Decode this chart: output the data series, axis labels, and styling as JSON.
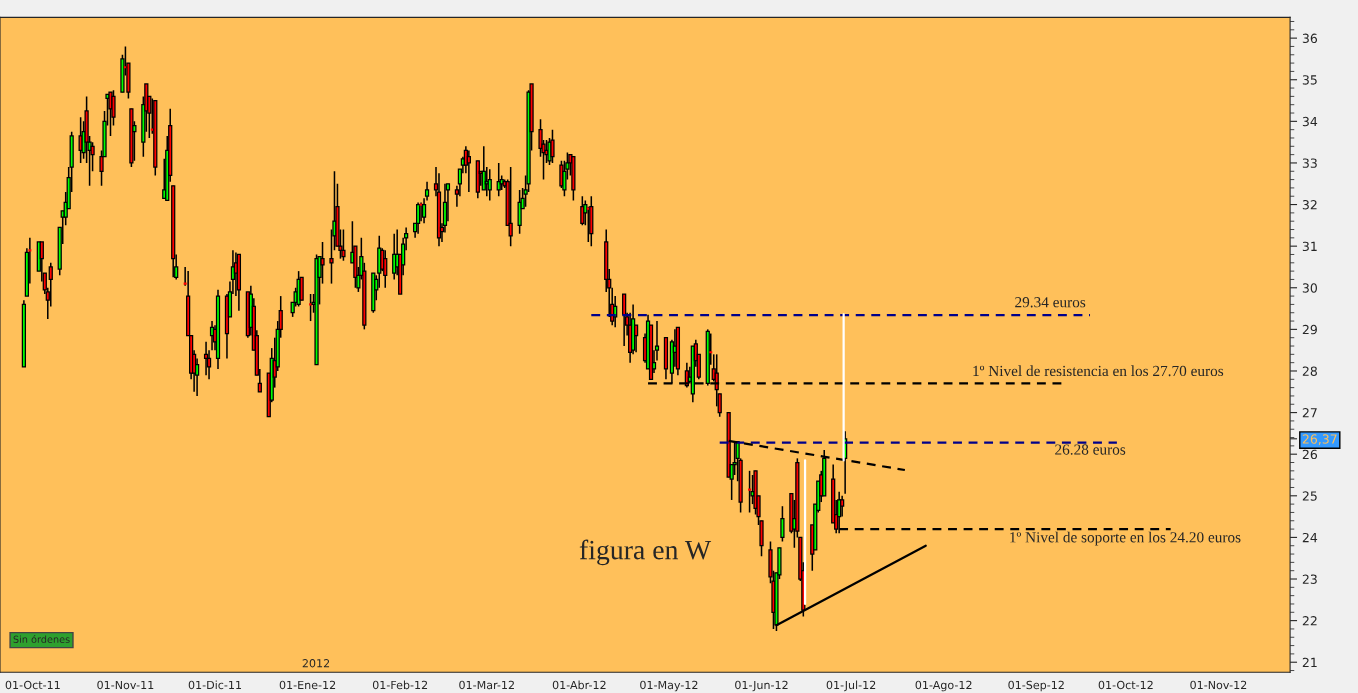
{
  "chart_data": {
    "type": "candlestick",
    "xlim": [
      "2011-09-20",
      "2012-11-25"
    ],
    "ylim": [
      20.76,
      36.5
    ],
    "xticks": [
      {
        "value": "2011-10-01",
        "label": "01-Oct-11"
      },
      {
        "value": "2011-11-01",
        "label": "01-Nov-11"
      },
      {
        "value": "2011-12-01",
        "label": "01-Dic-11"
      },
      {
        "value": "2012-01-01",
        "label": "01-Ene-12"
      },
      {
        "value": "2012-02-01",
        "label": "01-Feb-12"
      },
      {
        "value": "2012-03-01",
        "label": "01-Mar-12"
      },
      {
        "value": "2012-04-01",
        "label": "01-Abr-12"
      },
      {
        "value": "2012-05-01",
        "label": "01-May-12"
      },
      {
        "value": "2012-06-01",
        "label": "01-Jun-12"
      },
      {
        "value": "2012-07-01",
        "label": "01-Jul-12"
      },
      {
        "value": "2012-08-01",
        "label": "01-Ago-12"
      },
      {
        "value": "2012-09-01",
        "label": "01-Sep-12"
      },
      {
        "value": "2012-10-01",
        "label": "01-Oct-12"
      },
      {
        "value": "2012-11-01",
        "label": "01-Nov-12"
      }
    ],
    "yticks": [
      21,
      22,
      23,
      24,
      25,
      26,
      27,
      28,
      29,
      30,
      31,
      32,
      33,
      34,
      35,
      36,
      {
        "value": 26.37,
        "label": "26,37"
      }
    ],
    "series": [
      {
        "x": [
          "2011-09-28",
          "2011-09-29",
          "2011-09-30",
          "2011-10-03",
          "2011-10-04",
          "2011-10-05",
          "2011-10-06",
          "2011-10-07",
          "2011-10-10",
          "2011-10-11",
          "2011-10-12",
          "2011-10-13",
          "2011-10-14",
          "2011-10-17",
          "2011-10-18",
          "2011-10-19",
          "2011-10-20",
          "2011-10-21",
          "2011-10-24",
          "2011-10-25",
          "2011-10-26",
          "2011-10-27",
          "2011-10-28",
          "2011-10-31",
          "2011-11-01",
          "2011-11-02",
          "2011-11-03",
          "2011-11-04",
          "2011-11-07",
          "2011-11-08",
          "2011-11-09",
          "2011-11-10",
          "2011-11-11",
          "2011-11-14",
          "2011-11-15",
          "2011-11-16",
          "2011-11-17",
          "2011-11-18",
          "2011-11-21",
          "2011-11-22",
          "2011-11-23",
          "2011-11-24",
          "2011-11-25",
          "2011-11-28",
          "2011-11-29",
          "2011-11-30",
          "2011-12-01",
          "2011-12-02",
          "2011-12-05",
          "2011-12-06",
          "2011-12-07",
          "2011-12-08",
          "2011-12-09",
          "2011-12-12",
          "2011-12-13",
          "2011-12-14",
          "2011-12-15",
          "2011-12-16",
          "2011-12-19",
          "2011-12-20",
          "2011-12-21",
          "2011-12-22",
          "2011-12-23",
          "2011-12-27",
          "2011-12-28",
          "2011-12-29",
          "2011-12-30",
          "2012-01-02",
          "2012-01-03",
          "2012-01-04",
          "2012-01-05",
          "2012-01-06",
          "2012-01-09",
          "2012-01-10",
          "2012-01-11",
          "2012-01-12",
          "2012-01-13",
          "2012-01-16",
          "2012-01-17",
          "2012-01-18",
          "2012-01-19",
          "2012-01-20",
          "2012-01-23",
          "2012-01-24",
          "2012-01-25",
          "2012-01-26",
          "2012-01-27",
          "2012-01-30",
          "2012-01-31",
          "2012-02-01",
          "2012-02-02",
          "2012-02-03",
          "2012-02-06",
          "2012-02-07",
          "2012-02-08",
          "2012-02-09",
          "2012-02-10",
          "2012-02-13",
          "2012-02-14",
          "2012-02-15",
          "2012-02-16",
          "2012-02-17",
          "2012-02-20",
          "2012-02-21",
          "2012-02-22",
          "2012-02-23",
          "2012-02-24",
          "2012-02-27",
          "2012-02-28",
          "2012-02-29",
          "2012-03-01",
          "2012-03-02",
          "2012-03-05",
          "2012-03-06",
          "2012-03-07",
          "2012-03-08",
          "2012-03-09",
          "2012-03-12",
          "2012-03-13",
          "2012-03-14",
          "2012-03-15",
          "2012-03-16",
          "2012-03-19",
          "2012-03-20",
          "2012-03-21",
          "2012-03-22",
          "2012-03-23",
          "2012-03-26",
          "2012-03-27",
          "2012-03-28",
          "2012-03-29",
          "2012-03-30",
          "2012-04-02",
          "2012-04-03",
          "2012-04-04",
          "2012-04-05",
          "2012-04-10",
          "2012-04-11",
          "2012-04-12",
          "2012-04-13",
          "2012-04-16",
          "2012-04-17",
          "2012-04-18",
          "2012-04-19",
          "2012-04-20",
          "2012-04-23",
          "2012-04-24",
          "2012-04-25",
          "2012-04-26",
          "2012-04-27",
          "2012-04-30",
          "2012-05-02",
          "2012-05-03",
          "2012-05-04",
          "2012-05-07",
          "2012-05-08",
          "2012-05-09",
          "2012-05-10",
          "2012-05-11",
          "2012-05-14",
          "2012-05-15",
          "2012-05-16",
          "2012-05-17",
          "2012-05-18",
          "2012-05-21",
          "2012-05-22",
          "2012-05-23",
          "2012-05-24",
          "2012-05-25",
          "2012-05-28",
          "2012-05-29",
          "2012-05-30",
          "2012-05-31",
          "2012-06-01",
          "2012-06-04",
          "2012-06-05",
          "2012-06-06",
          "2012-06-07",
          "2012-06-08",
          "2012-06-11",
          "2012-06-12",
          "2012-06-13",
          "2012-06-14",
          "2012-06-15",
          "2012-06-18",
          "2012-06-19",
          "2012-06-20",
          "2012-06-21",
          "2012-06-22",
          "2012-06-25",
          "2012-06-26",
          "2012-06-27",
          "2012-06-28",
          "2012-06-29"
        ],
        "ohlc": [
          [
            28.1,
            29.7,
            28.1,
            29.6
          ],
          [
            29.8,
            30.95,
            29.8,
            30.85
          ],
          [
            30.9,
            31.2,
            30.1,
            30.9
          ],
          [
            30.4,
            31.1,
            30.4,
            31.1
          ],
          [
            31.1,
            31.1,
            30.15,
            30.7
          ],
          [
            30.35,
            30.35,
            29.85,
            29.95
          ],
          [
            29.9,
            30.0,
            29.25,
            29.7
          ],
          [
            30.5,
            30.6,
            29.55,
            30.2
          ],
          [
            30.45,
            31.45,
            30.3,
            31.45
          ],
          [
            31.7,
            31.85,
            31.05,
            31.85
          ],
          [
            31.7,
            32.3,
            31.5,
            32.05
          ],
          [
            31.9,
            32.9,
            31.9,
            32.65
          ],
          [
            32.9,
            33.75,
            32.3,
            33.65
          ],
          [
            33.65,
            34.1,
            33.0,
            33.3
          ],
          [
            33.25,
            34.0,
            33.1,
            33.75
          ],
          [
            34.25,
            34.6,
            33.0,
            33.5
          ],
          [
            33.3,
            33.65,
            32.45,
            33.5
          ],
          [
            33.4,
            33.5,
            32.8,
            33.2
          ],
          [
            33.15,
            33.3,
            32.45,
            32.8
          ],
          [
            33.15,
            34.25,
            33.15,
            34.0
          ],
          [
            34.55,
            34.65,
            33.9,
            34.65
          ],
          [
            34.7,
            34.7,
            33.65,
            34.3
          ],
          [
            34.6,
            34.75,
            33.9,
            34.1
          ],
          [
            34.7,
            35.6,
            34.7,
            35.5
          ],
          [
            35.3,
            35.8,
            35.1,
            35.3
          ],
          [
            35.4,
            35.4,
            34.55,
            34.7
          ],
          [
            34.3,
            34.3,
            32.9,
            33.0
          ],
          [
            33.75,
            34.0,
            33.05,
            33.9
          ],
          [
            33.5,
            34.6,
            33.15,
            34.4
          ],
          [
            34.9,
            34.9,
            33.75,
            34.25
          ],
          [
            34.6,
            34.6,
            33.6,
            34.2
          ],
          [
            33.8,
            34.55,
            33.7,
            33.8
          ],
          [
            34.5,
            34.5,
            32.7,
            32.9
          ],
          [
            32.15,
            33.1,
            32.15,
            32.35
          ],
          [
            32.1,
            33.65,
            32.1,
            33.3
          ],
          [
            33.9,
            34.3,
            32.55,
            32.7
          ],
          [
            32.45,
            32.45,
            30.25,
            30.7
          ],
          [
            30.25,
            30.8,
            30.2,
            30.5
          ],
          [
            30.1,
            30.5,
            30.05,
            30.1
          ],
          [
            29.8,
            30.4,
            28.85,
            28.85
          ],
          [
            28.85,
            28.85,
            27.8,
            27.95
          ],
          [
            28.4,
            28.5,
            27.5,
            27.95
          ],
          [
            27.9,
            28.3,
            27.4,
            28.15
          ],
          [
            28.4,
            28.7,
            27.9,
            28.3
          ],
          [
            28.3,
            28.5,
            27.8,
            28.1
          ],
          [
            28.85,
            29.2,
            28.5,
            29.05
          ],
          [
            29.0,
            29.1,
            28.5,
            28.7
          ],
          [
            28.3,
            29.95,
            28.05,
            29.8
          ],
          [
            29.8,
            29.85,
            28.3,
            28.9
          ],
          [
            29.3,
            30.15,
            29.3,
            29.9
          ],
          [
            30.2,
            30.9,
            29.85,
            30.5
          ],
          [
            30.6,
            30.85,
            29.8,
            30.35
          ],
          [
            30.8,
            30.8,
            29.45,
            29.95
          ],
          [
            29.9,
            29.9,
            28.8,
            28.85
          ],
          [
            29.05,
            30.05,
            28.85,
            29.85
          ],
          [
            29.55,
            29.75,
            28.5,
            28.5
          ],
          [
            28.85,
            28.98,
            27.9,
            27.9
          ],
          [
            27.7,
            28.05,
            27.5,
            27.5
          ],
          [
            27.95,
            27.95,
            26.9,
            26.9
          ],
          [
            27.3,
            28.55,
            27.25,
            28.3
          ],
          [
            28.25,
            28.8,
            27.6,
            27.85
          ],
          [
            28.1,
            29.2,
            28.0,
            29.0
          ],
          [
            29.45,
            29.8,
            28.8,
            29.0
          ],
          [
            29.4,
            29.65,
            29.3,
            29.65
          ],
          [
            29.65,
            30.0,
            29.55,
            29.9
          ],
          [
            29.6,
            30.4,
            29.55,
            30.2
          ],
          [
            30.25,
            30.25,
            29.7,
            29.7
          ],
          [
            29.6,
            29.85,
            29.2,
            29.6
          ],
          [
            29.6,
            29.85,
            29.4,
            29.65
          ],
          [
            28.15,
            30.8,
            28.15,
            30.7
          ],
          [
            30.25,
            30.75,
            29.6,
            30.75
          ],
          [
            30.7,
            31.1,
            30.1,
            30.55
          ],
          [
            30.7,
            31.4,
            30.1,
            30.6
          ],
          [
            31.25,
            32.8,
            30.9,
            31.6
          ],
          [
            31.95,
            32.5,
            31.0,
            31.0
          ],
          [
            31.0,
            31.4,
            30.7,
            30.9
          ],
          [
            30.9,
            31.4,
            30.65,
            30.75
          ],
          [
            30.6,
            31.6,
            30.6,
            30.85
          ],
          [
            31.0,
            31.0,
            30.0,
            30.25
          ],
          [
            30.0,
            30.5,
            29.9,
            30.3
          ],
          [
            30.3,
            31.2,
            30.2,
            30.75
          ],
          [
            30.4,
            30.6,
            29.0,
            29.1
          ],
          [
            29.45,
            30.35,
            29.4,
            30.35
          ],
          [
            29.95,
            30.3,
            29.7,
            30.2
          ],
          [
            30.35,
            31.25,
            30.0,
            30.95
          ],
          [
            30.9,
            30.95,
            30.4,
            30.45
          ],
          [
            30.7,
            30.9,
            30.0,
            30.3
          ],
          [
            30.35,
            31.3,
            30.2,
            30.8
          ],
          [
            30.5,
            31.4,
            30.3,
            30.8
          ],
          [
            30.8,
            30.8,
            29.85,
            29.85
          ],
          [
            30.55,
            31.2,
            30.3,
            31.05
          ],
          [
            31.2,
            31.45,
            30.9,
            31.3
          ],
          [
            31.35,
            31.55,
            31.2,
            31.55
          ],
          [
            31.55,
            32.05,
            31.3,
            32.0
          ],
          [
            32.0,
            32.05,
            31.6,
            32.0
          ],
          [
            31.7,
            32.15,
            31.55,
            32.0
          ],
          [
            32.2,
            32.55,
            32.1,
            32.35
          ],
          [
            32.5,
            32.9,
            32.2,
            32.35
          ],
          [
            32.3,
            32.75,
            31.0,
            31.2
          ],
          [
            31.45,
            31.55,
            31.1,
            31.35
          ],
          [
            31.5,
            32.5,
            31.33,
            32.05
          ],
          [
            32.35,
            32.5,
            31.6,
            32.5
          ],
          [
            32.35,
            32.45,
            31.95,
            32.25
          ],
          [
            32.5,
            32.85,
            32.2,
            32.85
          ],
          [
            32.95,
            33.15,
            32.75,
            33.1
          ],
          [
            33.3,
            33.4,
            32.75,
            32.95
          ],
          [
            33.15,
            33.3,
            32.3,
            33.0
          ],
          [
            33.05,
            33.05,
            32.15,
            32.3
          ],
          [
            32.8,
            32.8,
            32.45,
            32.75
          ],
          [
            32.35,
            33.4,
            32.35,
            32.8
          ],
          [
            32.5,
            32.9,
            32.2,
            32.55
          ],
          [
            32.35,
            32.85,
            32.1,
            32.6
          ],
          [
            32.35,
            33.0,
            32.2,
            32.55
          ],
          [
            32.5,
            32.7,
            32.35,
            32.6
          ],
          [
            32.55,
            32.6,
            32.4,
            32.45
          ],
          [
            32.55,
            32.6,
            31.5,
            31.5
          ],
          [
            31.55,
            32.9,
            31.0,
            31.25
          ],
          [
            31.5,
            32.35,
            31.3,
            32.05
          ],
          [
            31.9,
            32.4,
            31.9,
            32.15
          ],
          [
            32.25,
            32.7,
            31.95,
            32.35
          ],
          [
            32.5,
            34.75,
            32.3,
            34.7
          ],
          [
            34.9,
            34.9,
            33.3,
            33.75
          ],
          [
            33.8,
            34.05,
            33.15,
            33.35
          ],
          [
            33.45,
            33.55,
            32.6,
            33.25
          ],
          [
            33.3,
            33.55,
            33.0,
            33.2
          ],
          [
            33.05,
            33.6,
            32.95,
            33.5
          ],
          [
            33.55,
            33.8,
            33.0,
            33.15
          ],
          [
            32.95,
            33.05,
            32.4,
            32.45
          ],
          [
            32.35,
            33.05,
            32.2,
            32.8
          ],
          [
            32.85,
            33.25,
            32.6,
            33.0
          ],
          [
            33.2,
            33.2,
            32.7,
            33.0
          ],
          [
            33.15,
            33.15,
            32.1,
            32.35
          ],
          [
            31.95,
            32.2,
            31.5,
            31.55
          ],
          [
            31.8,
            32.1,
            31.5,
            32.0
          ],
          [
            31.9,
            31.95,
            31.1,
            31.9
          ],
          [
            31.95,
            32.2,
            31.0,
            31.3
          ],
          [
            31.1,
            31.4,
            29.9,
            30.2
          ],
          [
            30.2,
            30.45,
            29.3,
            30.0
          ],
          [
            29.6,
            30.0,
            29.1,
            29.2
          ],
          [
            29.3,
            29.8,
            29.05,
            29.55
          ],
          [
            29.85,
            29.85,
            28.6,
            29.35
          ],
          [
            29.3,
            29.4,
            28.85,
            29.1
          ],
          [
            29.1,
            29.4,
            28.2,
            28.45
          ],
          [
            28.5,
            29.6,
            28.4,
            29.25
          ],
          [
            29.1,
            29.1,
            28.45,
            28.85
          ],
          [
            28.8,
            28.9,
            28.2,
            28.25
          ],
          [
            28.05,
            29.35,
            28.05,
            29.2
          ],
          [
            29.1,
            29.1,
            27.8,
            27.8
          ],
          [
            28.05,
            28.5,
            27.95,
            28.2
          ],
          [
            28.5,
            29.2,
            28.25,
            28.6
          ],
          [
            28.8,
            28.8,
            27.8,
            28.05
          ],
          [
            27.95,
            28.75,
            27.7,
            28.7
          ],
          [
            28.45,
            29.0,
            28.1,
            28.6
          ],
          [
            29.05,
            29.05,
            27.9,
            28.05
          ],
          [
            28.0,
            28.2,
            27.6,
            27.65
          ],
          [
            27.75,
            28.1,
            27.7,
            27.85
          ],
          [
            27.45,
            28.6,
            27.25,
            28.6
          ],
          [
            28.65,
            28.75,
            28.1,
            28.25
          ],
          [
            28.4,
            28.4,
            27.8,
            27.85
          ],
          [
            27.7,
            29.0,
            27.65,
            28.95
          ],
          [
            28.45,
            28.9,
            28.15,
            28.45
          ],
          [
            28.05,
            28.4,
            27.75,
            27.8
          ],
          [
            27.95,
            28.4,
            27.15,
            27.55
          ],
          [
            27.45,
            27.45,
            26.9,
            27.0
          ],
          [
            27.0,
            27.0,
            25.45,
            25.45
          ],
          [
            25.4,
            25.75,
            24.9,
            25.75
          ],
          [
            25.75,
            26.3,
            25.5,
            25.8
          ],
          [
            25.9,
            26.3,
            25.35,
            26.3
          ],
          [
            25.85,
            25.9,
            24.6,
            24.85
          ],
          [
            25.15,
            25.6,
            24.6,
            25.15
          ],
          [
            25.0,
            25.5,
            24.8,
            25.1
          ],
          [
            25.6,
            25.6,
            24.55,
            24.7
          ],
          [
            25.0,
            25.0,
            24.3,
            24.5
          ],
          [
            24.4,
            24.4,
            23.55,
            23.8
          ],
          [
            23.7,
            23.9,
            22.9,
            23.05
          ],
          [
            22.95,
            23.2,
            21.8,
            22.2
          ],
          [
            21.9,
            23.15,
            21.75,
            23.15
          ],
          [
            23.1,
            23.75,
            23.0,
            23.75
          ],
          [
            24.0,
            24.75,
            23.9,
            24.45
          ],
          [
            25.05,
            25.05,
            24.1,
            24.15
          ],
          [
            24.2,
            24.9,
            23.75,
            24.45
          ],
          [
            25.8,
            25.9,
            24.0,
            24.15
          ],
          [
            24.0,
            24.0,
            22.95,
            23.0
          ],
          [
            23.2,
            23.4,
            22.1,
            22.25
          ],
          [
            24.3,
            24.3,
            23.2,
            23.6
          ],
          [
            23.7,
            24.8,
            23.7,
            24.8
          ],
          [
            24.65,
            25.35,
            24.6,
            25.35
          ],
          [
            25.5,
            25.6,
            24.85,
            25.0
          ],
          [
            25.0,
            26.1,
            25.0,
            25.9
          ],
          [
            25.4,
            25.75,
            24.35,
            24.35
          ],
          [
            24.55,
            24.9,
            24.1,
            24.2
          ],
          [
            24.5,
            25.1,
            24.1,
            24.9
          ],
          [
            24.9,
            25.0,
            24.5,
            24.75
          ],
          [
            25.9,
            26.55,
            25.05,
            26.37
          ]
        ],
        "colors": [
          "#00ff00",
          "#00ff00",
          "#ff0000",
          "#00ff00",
          "#ff0000",
          "#ff0000",
          "#ff0000",
          "#ff0000",
          "#00ff00",
          "#00ff00",
          "#00ff00",
          "#00ff00",
          "#00ff00",
          "#ff0000",
          "#00ff00",
          "#ff0000",
          "#00ff00",
          "#ff0000",
          "#ff0000",
          "#00ff00",
          "#00ff00",
          "#ff0000",
          "#ff0000",
          "#00ff00",
          "#ff0000",
          "#ff0000",
          "#ff0000",
          "#00ff00",
          "#00ff00",
          "#ff0000",
          "#ff0000",
          "#ff0000",
          "#ff0000",
          "#00ff00",
          "#00ff00",
          "#ff0000",
          "#ff0000",
          "#00ff00",
          "#ff0000",
          "#ff0000",
          "#ff0000",
          "#ff0000",
          "#00ff00",
          "#ff0000",
          "#ff0000",
          "#00ff00",
          "#ff0000",
          "#00ff00",
          "#ff0000",
          "#00ff00",
          "#00ff00",
          "#ff0000",
          "#ff0000",
          "#ff0000",
          "#00ff00",
          "#ff0000",
          "#ff0000",
          "#ff0000",
          "#ff0000",
          "#00ff00",
          "#ff0000",
          "#00ff00",
          "#ff0000",
          "#00ff00",
          "#00ff00",
          "#00ff00",
          "#ff0000",
          "#ff0000",
          "#00ff00",
          "#00ff00",
          "#00ff00",
          "#ff0000",
          "#ff0000",
          "#00ff00",
          "#ff0000",
          "#ff0000",
          "#ff0000",
          "#00ff00",
          "#ff0000",
          "#00ff00",
          "#00ff00",
          "#ff0000",
          "#00ff00",
          "#00ff00",
          "#00ff00",
          "#ff0000",
          "#ff0000",
          "#00ff00",
          "#00ff00",
          "#ff0000",
          "#00ff00",
          "#00ff00",
          "#00ff00",
          "#00ff00",
          "#ff0000",
          "#00ff00",
          "#00ff00",
          "#ff0000",
          "#ff0000",
          "#ff0000",
          "#00ff00",
          "#00ff00",
          "#ff0000",
          "#00ff00",
          "#00ff00",
          "#ff0000",
          "#ff0000",
          "#ff0000",
          "#ff0000",
          "#00ff00",
          "#00ff00",
          "#00ff00",
          "#00ff00",
          "#00ff00",
          "#ff0000",
          "#ff0000",
          "#ff0000",
          "#00ff00",
          "#00ff00",
          "#00ff00",
          "#00ff00",
          "#ff0000",
          "#ff0000",
          "#ff0000",
          "#ff0000",
          "#00ff00",
          "#ff0000",
          "#ff0000",
          "#00ff00",
          "#00ff00",
          "#ff0000",
          "#ff0000",
          "#ff0000",
          "#00ff00",
          "#ff0000",
          "#ff0000",
          "#ff0000",
          "#ff0000",
          "#ff0000",
          "#00ff00",
          "#ff0000",
          "#ff0000",
          "#ff0000",
          "#00ff00",
          "#ff0000",
          "#ff0000",
          "#00ff00",
          "#ff0000",
          "#00ff00",
          "#00ff00",
          "#ff0000",
          "#00ff00",
          "#00ff00",
          "#ff0000",
          "#ff0000",
          "#00ff00",
          "#00ff00",
          "#ff0000",
          "#ff0000",
          "#00ff00",
          "#ff0000",
          "#ff0000",
          "#ff0000",
          "#ff0000",
          "#ff0000",
          "#00ff00",
          "#00ff00",
          "#00ff00",
          "#ff0000",
          "#ff0000",
          "#00ff00",
          "#ff0000",
          "#ff0000",
          "#ff0000",
          "#ff0000",
          "#ff0000",
          "#00ff00",
          "#00ff00",
          "#00ff00",
          "#ff0000",
          "#00ff00",
          "#ff0000",
          "#ff0000",
          "#ff0000",
          "#ff0000",
          "#00ff00",
          "#00ff00",
          "#ff0000",
          "#00ff00",
          "#ff0000",
          "#ff0000",
          "#00ff00",
          "#ff0000",
          "#00ff00"
        ]
      },
      {
        "type": "line",
        "x": [
          "2012-04-05",
          "2012-09-19"
        ],
        "values": [
          29.34,
          29.34
        ],
        "color": "#00008b",
        "line_style": "dashed"
      },
      {
        "type": "line",
        "x": [
          "2012-04-24",
          "2012-09-10"
        ],
        "values": [
          27.7,
          27.7
        ],
        "color": "#000000",
        "line_style": "dashed"
      },
      {
        "type": "line",
        "x": [
          "2012-05-18",
          "2012-09-28"
        ],
        "values": [
          26.28,
          26.28
        ],
        "color": "#00008b",
        "line_style": "dashed"
      },
      {
        "type": "line",
        "x": [
          "2012-06-27",
          "2012-10-16"
        ],
        "values": [
          24.2,
          24.2
        ],
        "color": "#000000",
        "line_style": "dashed"
      },
      {
        "type": "line",
        "x": [
          "2012-05-21",
          "2012-07-19"
        ],
        "values": [
          26.32,
          25.62
        ],
        "color": "#000000",
        "line_style": "dashed"
      },
      {
        "type": "line",
        "x": [
          "2012-06-06",
          "2012-07-26"
        ],
        "values": [
          21.89,
          23.8
        ],
        "color": "#000000",
        "line_style": "solid"
      },
      {
        "type": "line",
        "x": [
          "2012-06-15T14:00",
          "2012-06-15T14:00"
        ],
        "values": [
          22.4,
          25.85
        ],
        "color": "#ffffff",
        "line_style": "solid"
      },
      {
        "type": "line",
        "x": [
          "2012-06-28T12:00",
          "2012-06-28T12:00"
        ],
        "values": [
          25.85,
          29.36
        ],
        "color": "#ffffff",
        "line_style": "solid"
      }
    ],
    "annotations": [
      "figura en W",
      "29.34 euros",
      "1º Nivel de resistencia en los 27.70 euros",
      "26.28 euros",
      "1º Nivel de soporte en los 24.20 euros",
      "2012",
      "Sin órdenes"
    ]
  }
}
